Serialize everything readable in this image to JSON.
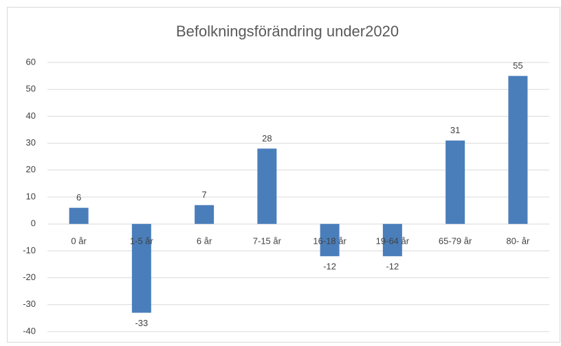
{
  "chart_data": {
    "type": "bar",
    "title": "Befolkningsförändring under2020",
    "categories": [
      "0 år",
      "1-5 år",
      "6 år",
      "7-15 år",
      "16-18 år",
      "19-64 år",
      "65-79 år",
      "80- år"
    ],
    "values": [
      6,
      -33,
      7,
      28,
      -12,
      -12,
      31,
      55
    ],
    "color": "#4a7ebb",
    "ylim": [
      -40,
      60
    ],
    "yticks": [
      -40,
      -30,
      -20,
      -10,
      0,
      10,
      20,
      30,
      40,
      50,
      60
    ],
    "grid": true
  }
}
